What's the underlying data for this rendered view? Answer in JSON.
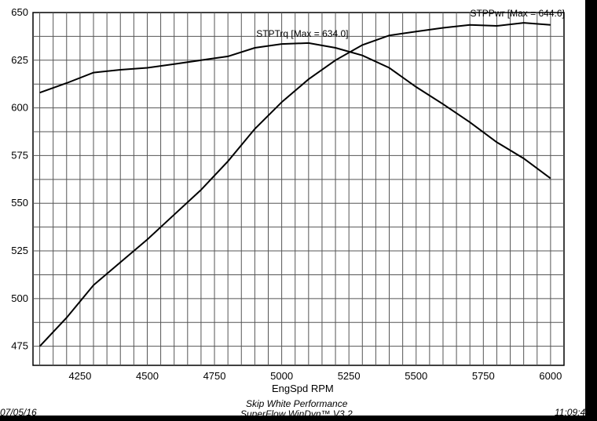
{
  "chart_data": {
    "type": "line",
    "xlabel": "EngSpd RPM",
    "ylabel": "",
    "xlim": [
      4075,
      6050
    ],
    "ylim": [
      465,
      650
    ],
    "x_ticks": [
      4250,
      4500,
      4750,
      5000,
      5250,
      5500,
      5750,
      6000
    ],
    "y_ticks": [
      475,
      500,
      525,
      550,
      575,
      600,
      625,
      650
    ],
    "grid": true,
    "series": [
      {
        "name": "STPPwr",
        "annotation": "STPPwr [Max = 644.6]",
        "x": [
          4100,
          4200,
          4300,
          4400,
          4500,
          4600,
          4700,
          4800,
          4900,
          5000,
          5100,
          5200,
          5300,
          5400,
          5500,
          5600,
          5700,
          5800,
          5900,
          6000
        ],
        "values": [
          475,
          490,
          507,
          519,
          531,
          544,
          557,
          572,
          589,
          603,
          615,
          625,
          633,
          638,
          640,
          642,
          643.5,
          643,
          644.6,
          643.5
        ]
      },
      {
        "name": "STPTrq",
        "annotation": "STPTrq [Max = 634.0]",
        "x": [
          4100,
          4200,
          4300,
          4400,
          4500,
          4600,
          4700,
          4800,
          4900,
          5000,
          5100,
          5200,
          5300,
          5400,
          5500,
          5600,
          5700,
          5800,
          5900,
          6000
        ],
        "values": [
          608,
          613,
          618.5,
          620,
          621,
          623,
          625,
          627,
          631.5,
          633.5,
          634.0,
          631.5,
          627.5,
          621,
          611,
          602,
          592.5,
          582,
          573.5,
          563
        ]
      }
    ]
  },
  "footer": {
    "company": "Skip White Performance",
    "software": "SuperFlow WinDyn™ V3.2",
    "date": "07/05/16",
    "time": "11:09:4"
  }
}
